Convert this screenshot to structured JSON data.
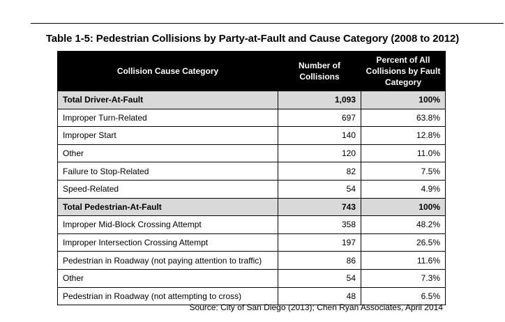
{
  "caption": "Table 1-5:  Pedestrian Collisions by Party-at-Fault and Cause Category (2008 to 2012)",
  "headers": {
    "category": "Collision Cause Category",
    "count": "Number of Collisions",
    "percent": "Percent of All Collisions by Fault Category"
  },
  "rows": [
    {
      "category": "Total Driver-At-Fault",
      "count": "1,093",
      "percent": "100%",
      "total": true
    },
    {
      "category": "Improper Turn-Related",
      "count": "697",
      "percent": "63.8%",
      "total": false
    },
    {
      "category": "Improper Start",
      "count": "140",
      "percent": "12.8%",
      "total": false
    },
    {
      "category": "Other",
      "count": "120",
      "percent": "11.0%",
      "total": false
    },
    {
      "category": "Failure to Stop-Related",
      "count": "82",
      "percent": "7.5%",
      "total": false
    },
    {
      "category": "Speed-Related",
      "count": "54",
      "percent": "4.9%",
      "total": false
    },
    {
      "category": "Total Pedestrian-At-Fault",
      "count": "743",
      "percent": "100%",
      "total": true
    },
    {
      "category": "Improper Mid-Block Crossing Attempt",
      "count": "358",
      "percent": "48.2%",
      "total": false
    },
    {
      "category": "Improper Intersection Crossing Attempt",
      "count": "197",
      "percent": "26.5%",
      "total": false
    },
    {
      "category": "Pedestrian in Roadway (not paying attention to traffic)",
      "count": "86",
      "percent": "11.6%",
      "total": false
    },
    {
      "category": "Other",
      "count": "54",
      "percent": "7.3%",
      "total": false
    },
    {
      "category": "Pedestrian in Roadway (not attempting to cross)",
      "count": "48",
      "percent": "6.5%",
      "total": false
    }
  ],
  "source": "Source: City of San Diego (2013); Chen Ryan Associates, April 2014"
}
